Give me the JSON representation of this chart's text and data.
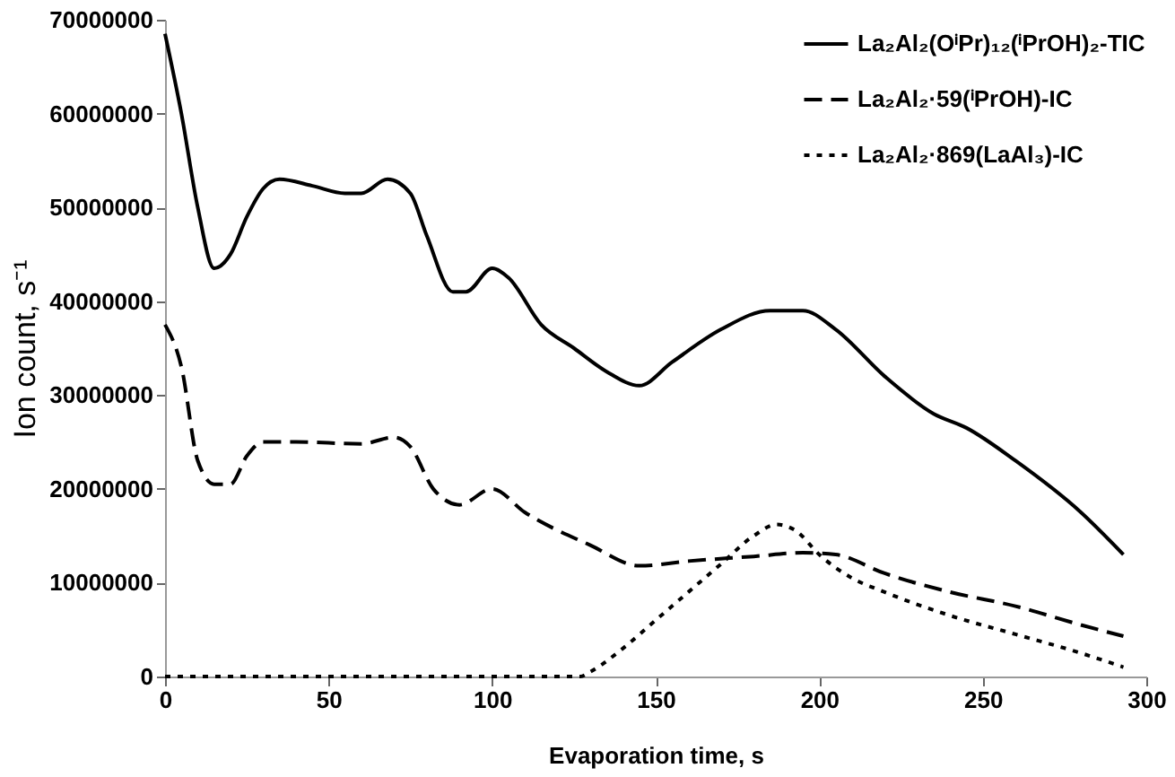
{
  "chart_data": {
    "type": "line",
    "xlabel": "Evaporation time, s",
    "ylabel": "Ion count, s⁻¹",
    "xlim": [
      0,
      300
    ],
    "xticks": [
      0,
      50,
      100,
      150,
      200,
      250,
      300
    ],
    "ylim": [
      0,
      70000000
    ],
    "yticks": [
      0,
      10000000,
      20000000,
      30000000,
      40000000,
      50000000,
      60000000,
      70000000
    ],
    "grid": false,
    "legend": "top right",
    "marker": "none",
    "series": [
      {
        "name": "La₂Al₂(OⁱPr)₁₂(ⁱPrOH)₂-TIC",
        "color": "#000000",
        "line_style": "solid",
        "x": [
          0,
          5,
          10,
          15,
          20,
          25,
          30,
          35,
          45,
          55,
          60,
          68,
          75,
          80,
          88,
          92,
          100,
          105,
          115,
          125,
          135,
          145,
          155,
          170,
          185,
          195,
          205,
          220,
          235,
          245,
          260,
          280,
          293
        ],
        "values": [
          68500000,
          60000000,
          50000000,
          43500000,
          45000000,
          49000000,
          52000000,
          53000000,
          52300000,
          51500000,
          51500000,
          53000000,
          51500000,
          47000000,
          41000000,
          41000000,
          43500000,
          42500000,
          37500000,
          35000000,
          32500000,
          31000000,
          33500000,
          37000000,
          39000000,
          39000000,
          37000000,
          32000000,
          28000000,
          26500000,
          23000000,
          17500000,
          13000000
        ]
      },
      {
        "name": "La₂Al₂·59(ⁱPrOH)-IC",
        "color": "#000000",
        "line_style": "dashed",
        "x": [
          0,
          5,
          10,
          15,
          20,
          25,
          30,
          40,
          60,
          70,
          75,
          82,
          90,
          100,
          110,
          130,
          145,
          160,
          180,
          195,
          205,
          220,
          240,
          260,
          280,
          293
        ],
        "values": [
          37500000,
          33000000,
          23000000,
          20500000,
          20500000,
          23500000,
          25000000,
          25000000,
          24800000,
          25500000,
          24500000,
          20000000,
          18300000,
          20000000,
          17500000,
          14000000,
          11800000,
          12300000,
          12800000,
          13200000,
          13000000,
          11000000,
          9000000,
          7500000,
          5500000,
          4300000
        ]
      },
      {
        "name": "La₂Al₂·869(LaAl₃)-IC",
        "color": "#000000",
        "line_style": "dotted",
        "x": [
          0,
          50,
          100,
          127,
          130,
          140,
          150,
          160,
          170,
          180,
          187,
          193,
          200,
          210,
          220,
          240,
          260,
          280,
          293
        ],
        "values": [
          0,
          0,
          0,
          0,
          500000,
          3000000,
          6000000,
          9000000,
          12000000,
          15000000,
          16200000,
          15500000,
          13000000,
          10500000,
          9000000,
          6500000,
          4500000,
          2500000,
          1000000
        ]
      }
    ]
  }
}
